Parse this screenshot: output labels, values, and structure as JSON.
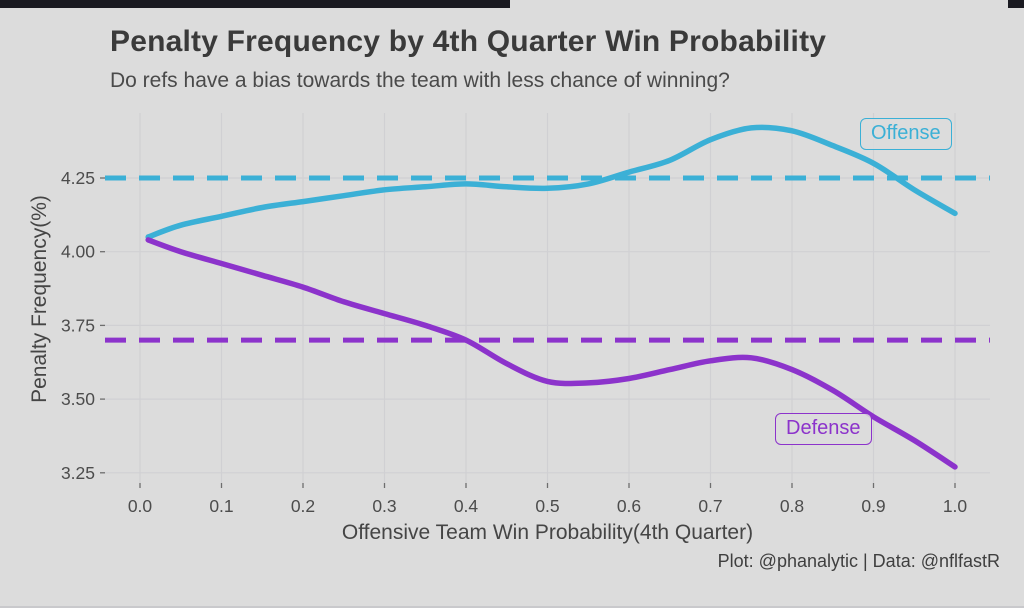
{
  "page": {
    "title": "Penalty Frequency by 4th Quarter Win Probability",
    "subtitle": "Do refs have a bias towards the team with less chance of winning?",
    "caption": "Plot: @phanalytic | Data: @nflfastR"
  },
  "chart_data": {
    "type": "line",
    "title": "Penalty Frequency by 4th Quarter Win Probability",
    "subtitle": "Do refs have a bias towards the team with less chance of winning?",
    "caption": "Plot: @phanalytic | Data: @nflfastR",
    "x_axis": {
      "label": "Offensive Team Win Probability(4th Quarter)",
      "ticks": [
        0.0,
        0.1,
        0.2,
        0.3,
        0.4,
        0.5,
        0.6,
        0.7,
        0.8,
        0.9,
        1.0
      ],
      "tick_labels": [
        "0.0",
        "0.1",
        "0.2",
        "0.3",
        "0.4",
        "0.5",
        "0.6",
        "0.7",
        "0.8",
        "0.9",
        "1.0"
      ],
      "range": [
        -0.04,
        1.04
      ]
    },
    "y_axis": {
      "label": "Penalty Frequency(%)",
      "ticks": [
        3.25,
        3.5,
        3.75,
        4.0,
        4.25
      ],
      "tick_labels": [
        "3.25",
        "3.50",
        "3.75",
        "4.00",
        "4.25"
      ],
      "range": [
        3.2,
        4.47
      ]
    },
    "grid": true,
    "x": [
      0.01,
      0.05,
      0.1,
      0.15,
      0.2,
      0.25,
      0.3,
      0.35,
      0.4,
      0.45,
      0.5,
      0.55,
      0.6,
      0.65,
      0.7,
      0.75,
      0.8,
      0.85,
      0.9,
      0.95,
      1.0
    ],
    "series": [
      {
        "name": "Offense",
        "color": "#3bb0d6",
        "values": [
          4.05,
          4.09,
          4.12,
          4.15,
          4.17,
          4.19,
          4.21,
          4.22,
          4.23,
          4.22,
          4.215,
          4.23,
          4.27,
          4.31,
          4.38,
          4.42,
          4.41,
          4.36,
          4.3,
          4.21,
          4.13
        ]
      },
      {
        "name": "Defense",
        "color": "#8c33cb",
        "values": [
          4.04,
          4.0,
          3.96,
          3.92,
          3.88,
          3.83,
          3.79,
          3.75,
          3.7,
          3.62,
          3.56,
          3.555,
          3.57,
          3.6,
          3.63,
          3.64,
          3.6,
          3.53,
          3.44,
          3.36,
          3.27
        ]
      }
    ],
    "reference_lines": [
      {
        "name": "offense",
        "value": 4.25,
        "color": "#3bb0d6",
        "style": "dashed"
      },
      {
        "name": "defense",
        "value": 3.7,
        "color": "#8c33cb",
        "style": "dashed"
      }
    ],
    "annotations": [
      {
        "text": "Offense",
        "color": "#3bb0d6"
      },
      {
        "text": "Defense",
        "color": "#8c33cb"
      }
    ],
    "colors": {
      "background": "#dcdcdc",
      "grid": "#d0d0d3",
      "tick": "#6e6e6e",
      "top_bar": "#1a1a21"
    }
  }
}
